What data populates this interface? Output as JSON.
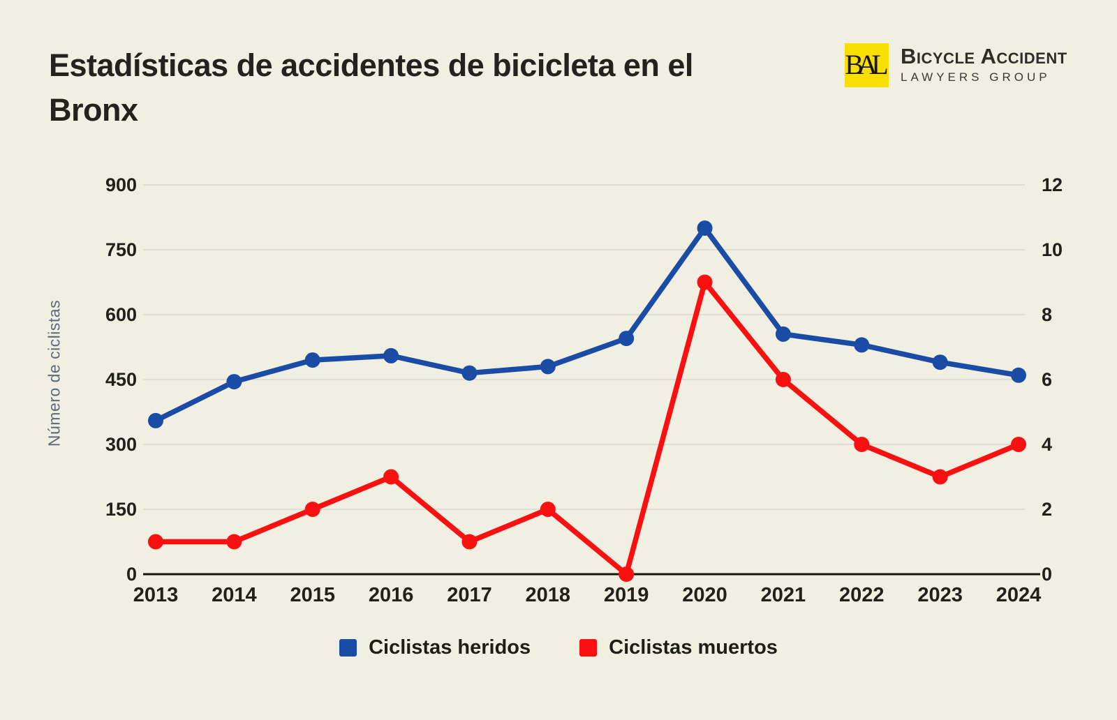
{
  "page": {
    "background": "#f1efe2"
  },
  "header": {
    "title": "Estadísticas de accidentes de bicicleta en el Bronx",
    "logo": {
      "monogram": "BAL",
      "line1": "Bicycle Accident",
      "line2": "LAWYERS GROUP",
      "box_color": "#f8df00"
    }
  },
  "chart_data": {
    "type": "line",
    "categories": [
      2013,
      2014,
      2015,
      2016,
      2017,
      2018,
      2019,
      2020,
      2021,
      2022,
      2023,
      2024
    ],
    "series": [
      {
        "name": "Ciclistas heridos",
        "axis": "left",
        "color": "#1a4ca5",
        "values": [
          355,
          445,
          495,
          505,
          465,
          480,
          545,
          800,
          555,
          530,
          490,
          460
        ]
      },
      {
        "name": "Ciclistas muertos",
        "axis": "right",
        "color": "#fa1010",
        "values": [
          1,
          1,
          2,
          3,
          1,
          2,
          0,
          9,
          6,
          4,
          3,
          4
        ]
      }
    ],
    "left_axis": {
      "label": "Número de ciclistas",
      "ticks": [
        0,
        150,
        300,
        450,
        600,
        750,
        900
      ],
      "ylim": [
        0,
        900
      ]
    },
    "right_axis": {
      "ticks": [
        0,
        2,
        4,
        6,
        8,
        10,
        12
      ],
      "ylim": [
        0,
        12
      ]
    },
    "grid": true,
    "legend_position": "bottom",
    "styles": {
      "grid_color": "#dbd9cc",
      "axis_line_color": "#141411",
      "tick_label_color": "#21211c",
      "axis_title_color": "#5b6b7c"
    }
  }
}
